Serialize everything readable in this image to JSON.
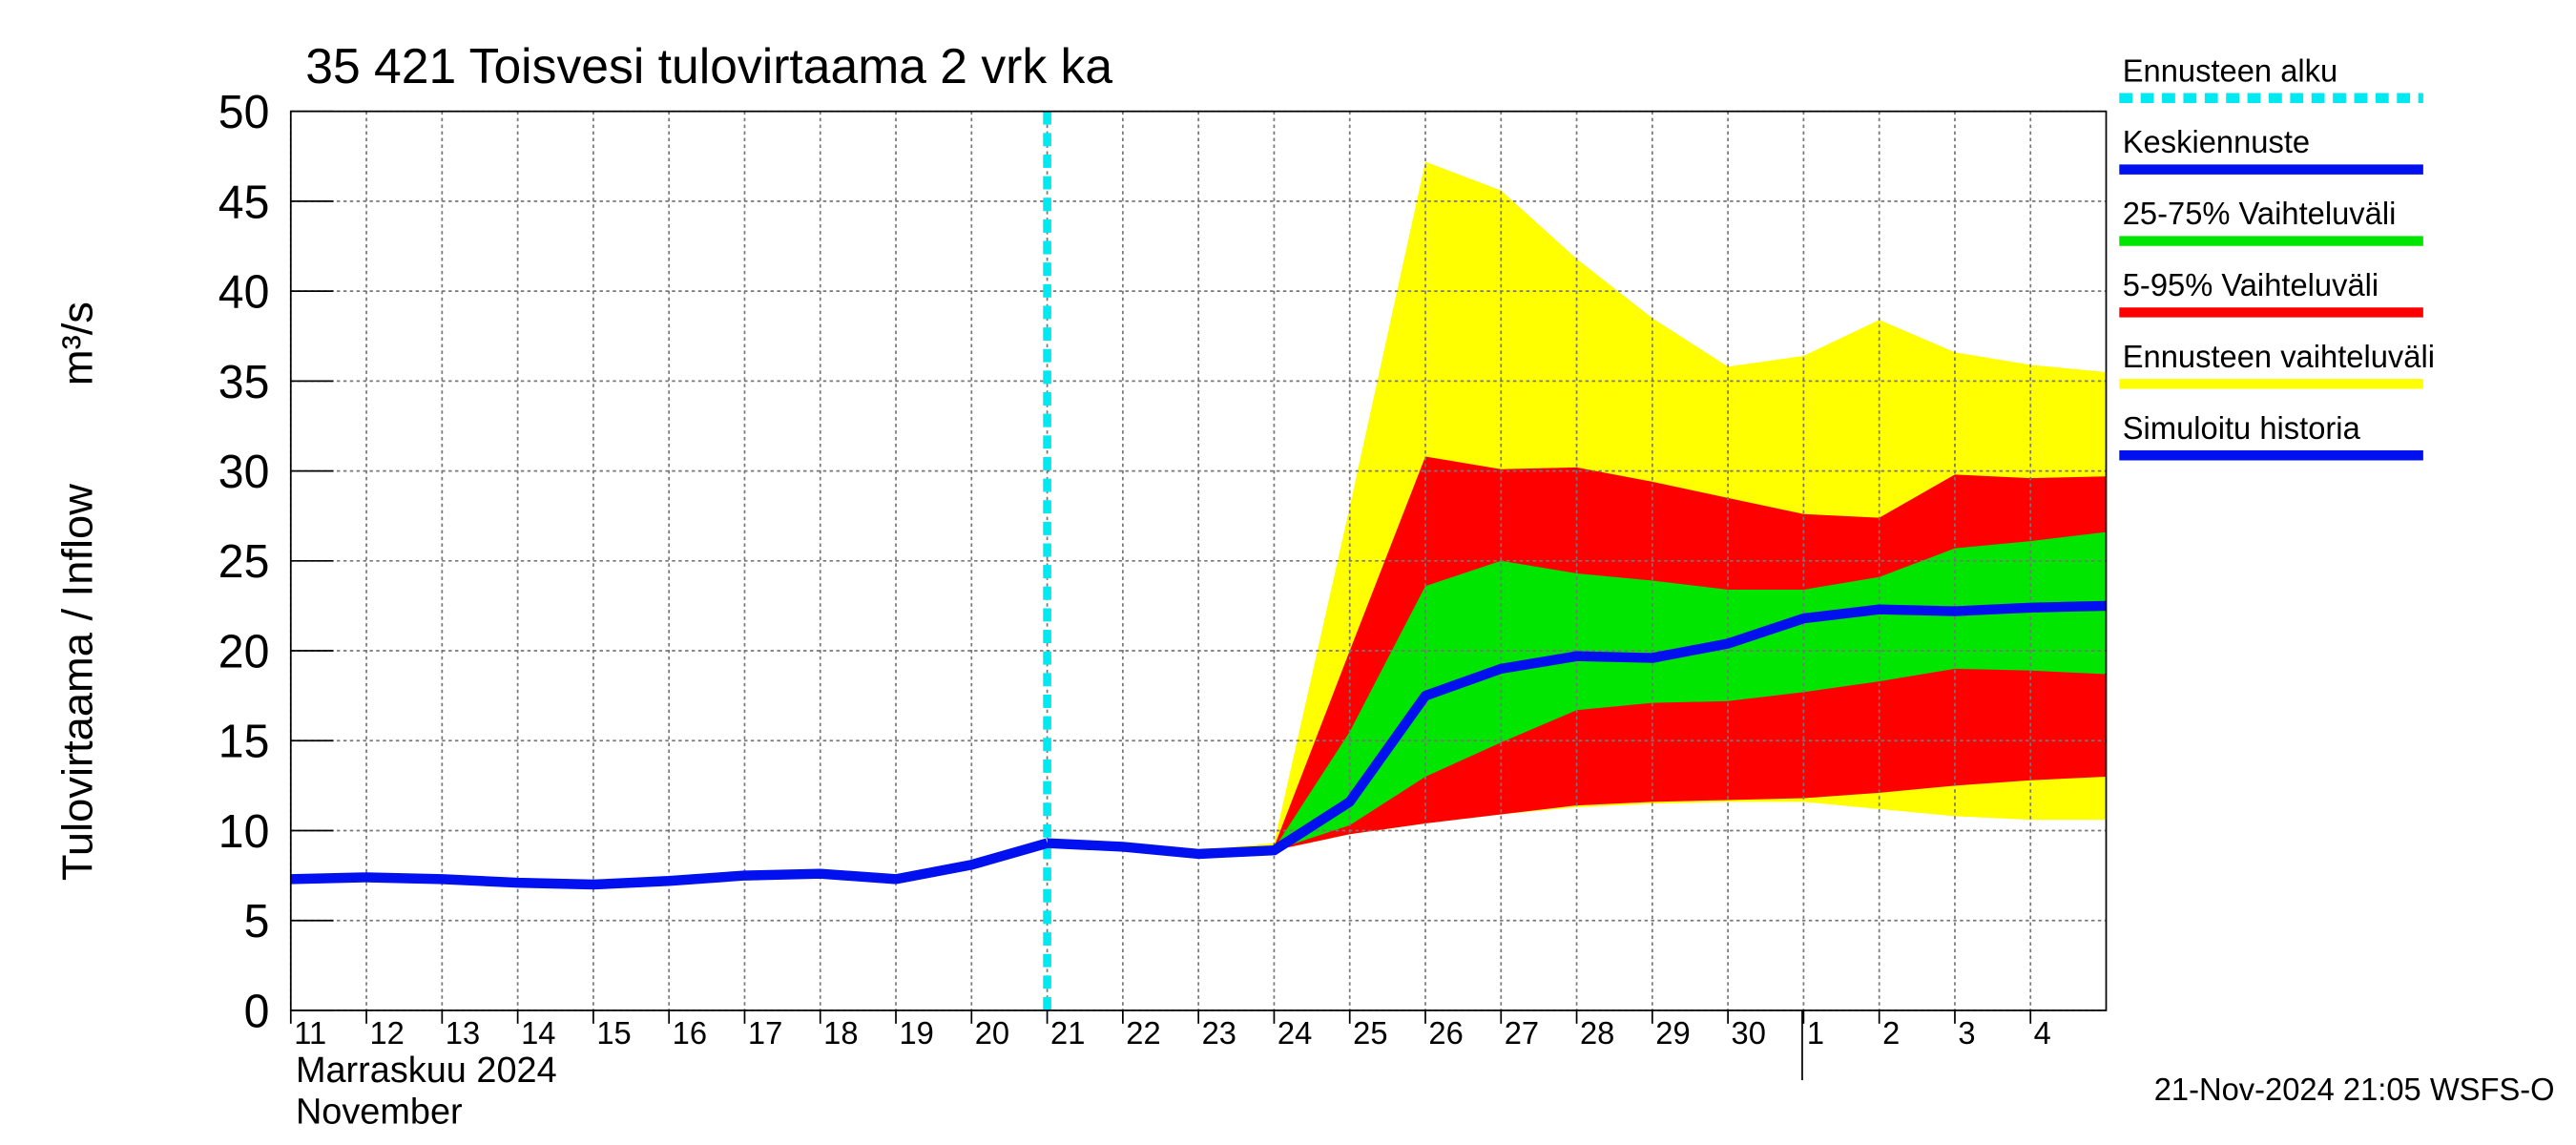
{
  "chart_data": {
    "type": "line",
    "title": "35 421 Toisvesi tulovirtaama 2 vrk ka",
    "ylabel": "Tulovirtaama / Inflow",
    "yunit": "m³/s",
    "month_label": "Marraskuu 2024",
    "month_label_en": "November",
    "footer": "21-Nov-2024 21:05 WSFS-O",
    "xlim": [
      "2024-11-11",
      "2024-12-05"
    ],
    "xticks": [
      {
        "value": "2024-11-11",
        "label": "11"
      },
      {
        "value": "2024-11-12",
        "label": "12"
      },
      {
        "value": "2024-11-13",
        "label": "13"
      },
      {
        "value": "2024-11-14",
        "label": "14"
      },
      {
        "value": "2024-11-15",
        "label": "15"
      },
      {
        "value": "2024-11-16",
        "label": "16"
      },
      {
        "value": "2024-11-17",
        "label": "17"
      },
      {
        "value": "2024-11-18",
        "label": "18"
      },
      {
        "value": "2024-11-19",
        "label": "19"
      },
      {
        "value": "2024-11-20",
        "label": "20"
      },
      {
        "value": "2024-11-21",
        "label": "21"
      },
      {
        "value": "2024-11-22",
        "label": "22"
      },
      {
        "value": "2024-11-23",
        "label": "23"
      },
      {
        "value": "2024-11-24",
        "label": "24"
      },
      {
        "value": "2024-11-25",
        "label": "25"
      },
      {
        "value": "2024-11-26",
        "label": "26"
      },
      {
        "value": "2024-11-27",
        "label": "27"
      },
      {
        "value": "2024-11-28",
        "label": "28"
      },
      {
        "value": "2024-11-29",
        "label": "29"
      },
      {
        "value": "2024-11-30",
        "label": "30"
      },
      {
        "value": "2024-12-01",
        "label": "1"
      },
      {
        "value": "2024-12-02",
        "label": "2"
      },
      {
        "value": "2024-12-03",
        "label": "3"
      },
      {
        "value": "2024-12-04",
        "label": "4"
      }
    ],
    "ylim": [
      0,
      50
    ],
    "yticks": [
      0,
      5,
      10,
      15,
      20,
      25,
      30,
      35,
      40,
      45,
      50
    ],
    "grid": true,
    "series": [
      {
        "name": "Ennusteen alku",
        "kind": "vline",
        "color": "#00e8f0",
        "x": "2024-11-21"
      },
      {
        "name": "Keskiennuste",
        "kind": "line",
        "color": "#0010ee",
        "x": [
          "2024-11-21",
          "2024-11-22",
          "2024-11-23",
          "2024-11-24",
          "2024-11-25",
          "2024-11-26",
          "2024-11-27",
          "2024-11-28",
          "2024-11-29",
          "2024-11-30",
          "2024-12-01",
          "2024-12-02",
          "2024-12-03",
          "2024-12-04",
          "2024-12-05"
        ],
        "values": [
          9.3,
          9.1,
          8.7,
          8.9,
          11.6,
          17.5,
          19.0,
          19.7,
          19.6,
          20.4,
          21.8,
          22.3,
          22.2,
          22.4,
          22.5
        ]
      },
      {
        "name": "25-75% Vaihteluväli",
        "kind": "band",
        "color": "#00e600",
        "x": [
          "2024-11-21",
          "2024-11-22",
          "2024-11-23",
          "2024-11-24",
          "2024-11-25",
          "2024-11-26",
          "2024-11-27",
          "2024-11-28",
          "2024-11-29",
          "2024-11-30",
          "2024-12-01",
          "2024-12-02",
          "2024-12-03",
          "2024-12-04",
          "2024-12-05"
        ],
        "low": [
          9.3,
          9.0,
          8.7,
          8.9,
          10.3,
          13.0,
          14.9,
          16.7,
          17.1,
          17.2,
          17.7,
          18.3,
          19.0,
          18.9,
          18.7
        ],
        "high": [
          9.3,
          9.2,
          8.8,
          9.0,
          15.5,
          23.6,
          25.0,
          24.3,
          23.9,
          23.4,
          23.4,
          24.1,
          25.7,
          26.1,
          26.6
        ]
      },
      {
        "name": "5-95% Vaihteluväli",
        "kind": "band",
        "color": "#ff0000",
        "x": [
          "2024-11-21",
          "2024-11-22",
          "2024-11-23",
          "2024-11-24",
          "2024-11-25",
          "2024-11-26",
          "2024-11-27",
          "2024-11-28",
          "2024-11-29",
          "2024-11-30",
          "2024-12-01",
          "2024-12-02",
          "2024-12-03",
          "2024-12-04",
          "2024-12-05"
        ],
        "low": [
          9.3,
          9.0,
          8.7,
          8.9,
          9.8,
          10.4,
          10.9,
          11.4,
          11.6,
          11.7,
          11.8,
          12.1,
          12.5,
          12.8,
          13.0
        ],
        "high": [
          9.3,
          9.2,
          8.8,
          9.1,
          20.0,
          30.8,
          30.1,
          30.2,
          29.4,
          28.5,
          27.6,
          27.4,
          29.8,
          29.6,
          29.7
        ]
      },
      {
        "name": "Ennusteen vaihteluväli",
        "kind": "band",
        "color": "#ffff00",
        "x": [
          "2024-11-21",
          "2024-11-22",
          "2024-11-23",
          "2024-11-24",
          "2024-11-25",
          "2024-11-26",
          "2024-11-27",
          "2024-11-28",
          "2024-11-29",
          "2024-11-30",
          "2024-12-01",
          "2024-12-02",
          "2024-12-03",
          "2024-12-04",
          "2024-12-05"
        ],
        "low": [
          9.3,
          9.0,
          8.6,
          8.9,
          9.8,
          10.4,
          10.9,
          11.3,
          11.5,
          11.6,
          11.6,
          11.2,
          10.8,
          10.6,
          10.6
        ],
        "high": [
          9.3,
          9.3,
          8.9,
          9.3,
          28.0,
          47.2,
          45.6,
          41.8,
          38.5,
          35.8,
          36.4,
          38.4,
          36.6,
          35.9,
          35.5
        ]
      },
      {
        "name": "Simuloitu historia",
        "kind": "line",
        "color": "#0010ee",
        "x": [
          "2024-11-11",
          "2024-11-12",
          "2024-11-13",
          "2024-11-14",
          "2024-11-15",
          "2024-11-16",
          "2024-11-17",
          "2024-11-18",
          "2024-11-19",
          "2024-11-20",
          "2024-11-21"
        ],
        "values": [
          7.3,
          7.4,
          7.3,
          7.1,
          7.0,
          7.2,
          7.5,
          7.6,
          7.3,
          8.1,
          9.3
        ]
      }
    ]
  }
}
